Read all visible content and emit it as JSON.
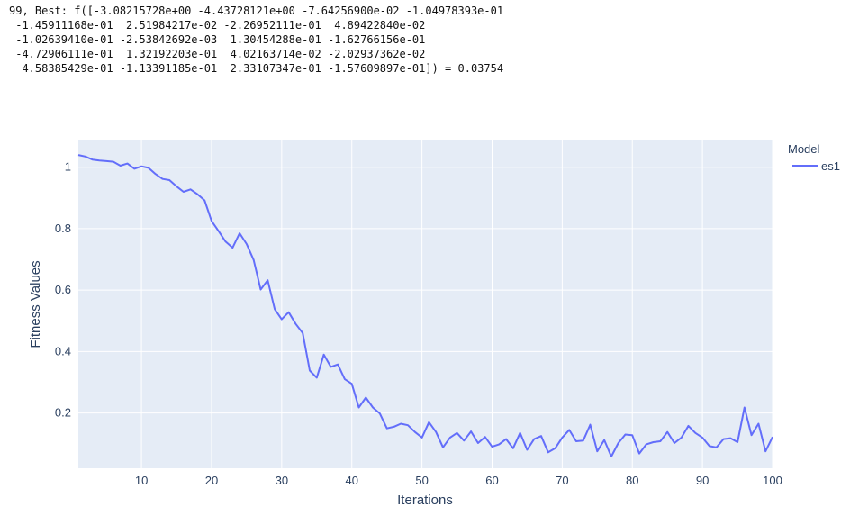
{
  "console_output": {
    "lines": [
      "99, Best: f([-3.08215728e+00 -4.43728121e+00 -7.64256900e-02 -1.04978393e-01",
      " -1.45911168e-01  2.51984217e-02 -2.26952111e-01  4.89422840e-02",
      " -1.02639410e-01 -2.53842692e-03  1.30454288e-01 -1.62766156e-01",
      " -4.72906111e-01  1.32192203e-01  4.02163714e-02 -2.02937362e-02",
      "  4.58385429e-01 -1.13391185e-01  2.33107347e-01 -1.57609897e-01]) = 0.03754"
    ]
  },
  "chart_data": {
    "type": "line",
    "title": "",
    "xlabel": "Iterations",
    "ylabel": "Fitness Values",
    "xlim": [
      1,
      100
    ],
    "ylim": [
      0.02,
      1.09
    ],
    "xticks": [
      10,
      20,
      30,
      40,
      50,
      60,
      70,
      80,
      90,
      100
    ],
    "yticks": [
      0.2,
      0.4,
      0.6,
      0.8,
      1
    ],
    "ytick_labels": [
      "0.2",
      "0.4",
      "0.6",
      "0.8",
      "1"
    ],
    "grid": true,
    "legend": {
      "title": "Model",
      "position": "top-right"
    },
    "series": [
      {
        "name": "es1",
        "color": "#636efa",
        "x": [
          1,
          2,
          3,
          4,
          5,
          6,
          7,
          8,
          9,
          10,
          11,
          12,
          13,
          14,
          15,
          16,
          17,
          18,
          19,
          20,
          21,
          22,
          23,
          24,
          25,
          26,
          27,
          28,
          29,
          30,
          31,
          32,
          33,
          34,
          35,
          36,
          37,
          38,
          39,
          40,
          41,
          42,
          43,
          44,
          45,
          46,
          47,
          48,
          49,
          50,
          51,
          52,
          53,
          54,
          55,
          56,
          57,
          58,
          59,
          60,
          61,
          62,
          63,
          64,
          65,
          66,
          67,
          68,
          69,
          70,
          71,
          72,
          73,
          74,
          75,
          76,
          77,
          78,
          79,
          80,
          81,
          82,
          83,
          84,
          85,
          86,
          87,
          88,
          89,
          90,
          91,
          92,
          93,
          94,
          95,
          96,
          97,
          98,
          99,
          100
        ],
        "values": [
          1.04,
          1.035,
          1.025,
          1.022,
          1.02,
          1.018,
          1.005,
          1.012,
          0.995,
          1.003,
          0.998,
          0.978,
          0.962,
          0.958,
          0.938,
          0.92,
          0.928,
          0.912,
          0.892,
          0.825,
          0.792,
          0.758,
          0.738,
          0.785,
          0.75,
          0.698,
          0.602,
          0.632,
          0.538,
          0.505,
          0.528,
          0.49,
          0.46,
          0.338,
          0.315,
          0.39,
          0.35,
          0.358,
          0.31,
          0.295,
          0.218,
          0.25,
          0.218,
          0.198,
          0.15,
          0.155,
          0.165,
          0.16,
          0.138,
          0.12,
          0.17,
          0.138,
          0.088,
          0.12,
          0.135,
          0.11,
          0.14,
          0.102,
          0.122,
          0.09,
          0.098,
          0.115,
          0.085,
          0.135,
          0.08,
          0.115,
          0.125,
          0.072,
          0.085,
          0.12,
          0.145,
          0.108,
          0.11,
          0.162,
          0.075,
          0.112,
          0.058,
          0.102,
          0.13,
          0.128,
          0.068,
          0.098,
          0.105,
          0.108,
          0.138,
          0.102,
          0.12,
          0.158,
          0.135,
          0.12,
          0.092,
          0.088,
          0.115,
          0.118,
          0.105,
          0.218,
          0.128,
          0.165,
          0.075,
          0.122
        ]
      }
    ]
  }
}
